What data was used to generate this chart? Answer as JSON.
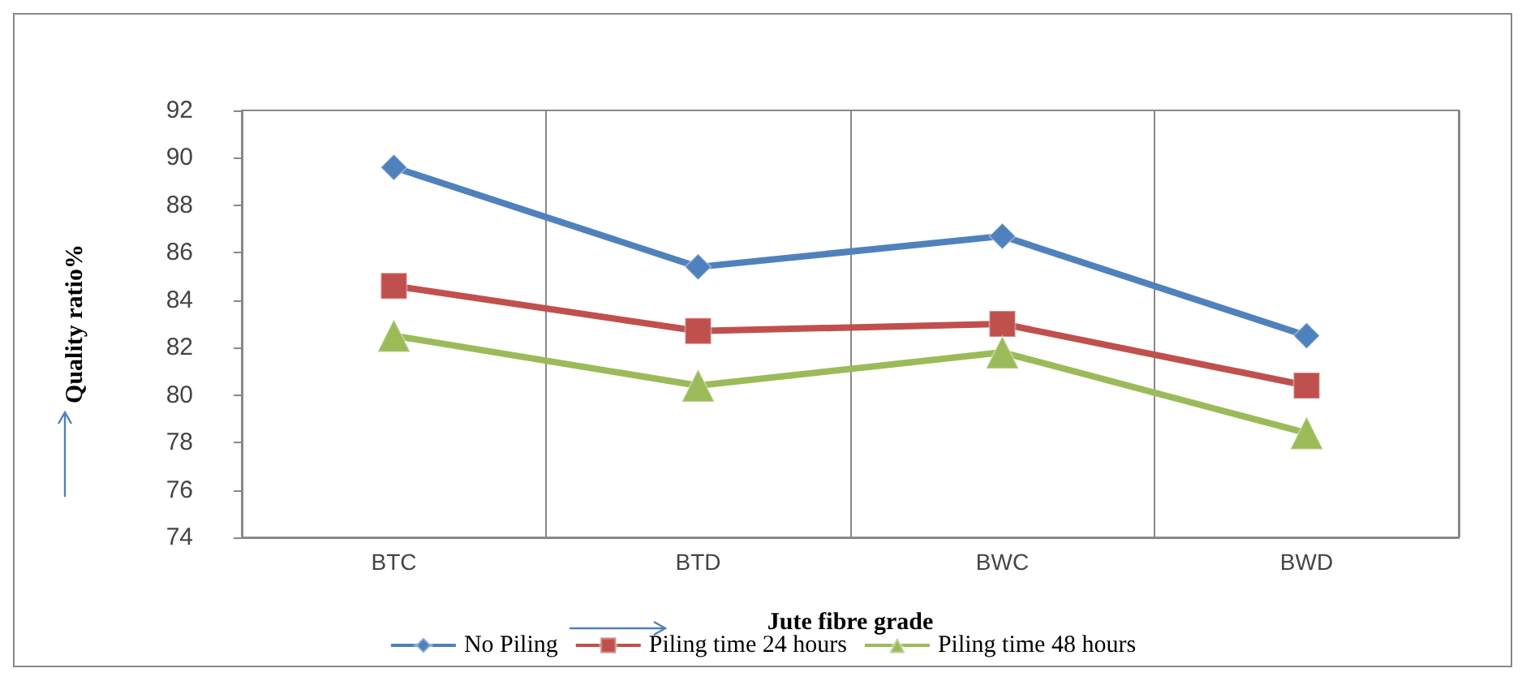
{
  "chart_data": {
    "type": "line",
    "xlabel": "Jute fibre grade",
    "ylabel": "Quality ratio%",
    "categories": [
      "BTC",
      "BTD",
      "BWC",
      "BWD"
    ],
    "series": [
      {
        "name": "No Piling",
        "color": "#4f81bd",
        "marker": "diamond",
        "values": [
          89.6,
          85.4,
          86.7,
          82.5
        ]
      },
      {
        "name": "Piling time 24 hours",
        "color": "#c0504d",
        "marker": "square",
        "values": [
          84.6,
          82.7,
          83.0,
          80.4
        ]
      },
      {
        "name": "Piling time 48 hours",
        "color": "#9bbb59",
        "marker": "triangle",
        "values": [
          82.5,
          80.4,
          81.8,
          78.4
        ]
      }
    ],
    "ylim": [
      74,
      92
    ],
    "yticks": [
      74,
      76,
      78,
      80,
      82,
      84,
      86,
      88,
      90,
      92
    ],
    "grid": "x",
    "legend": "bottom"
  }
}
